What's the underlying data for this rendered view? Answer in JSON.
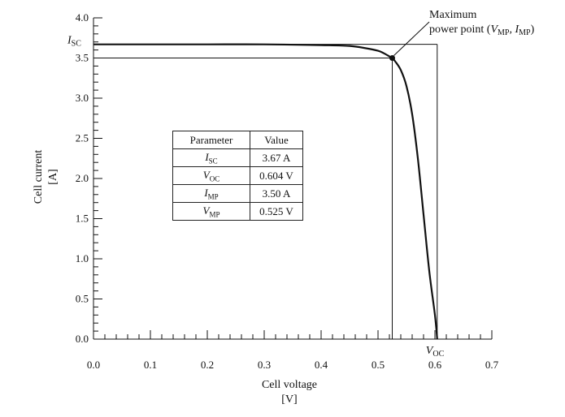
{
  "chart_data": {
    "type": "line",
    "xlabel": "Cell voltage",
    "xlabel_unit": "[V]",
    "ylabel": "Cell current",
    "ylabel_unit": "[A]",
    "xlim": [
      0.0,
      0.7
    ],
    "ylim": [
      0.0,
      4.0
    ],
    "x_ticks": [
      "0.0",
      "0.1",
      "0.2",
      "0.3",
      "0.4",
      "0.5",
      "0.6",
      "0.7"
    ],
    "y_ticks": [
      "0.0",
      "0.5",
      "1.0",
      "1.5",
      "2.0",
      "2.5",
      "3.0",
      "3.5",
      "4.0"
    ],
    "series": [
      {
        "x": [
          0.0,
          0.1,
          0.2,
          0.3,
          0.4,
          0.45,
          0.48,
          0.5,
          0.51,
          0.52,
          0.525,
          0.53,
          0.54,
          0.55,
          0.56,
          0.57,
          0.58,
          0.59,
          0.6,
          0.604
        ],
        "y": [
          3.67,
          3.67,
          3.67,
          3.67,
          3.66,
          3.65,
          3.62,
          3.59,
          3.56,
          3.52,
          3.5,
          3.46,
          3.35,
          3.15,
          2.8,
          2.25,
          1.55,
          0.85,
          0.3,
          0.0
        ]
      }
    ],
    "isc_label": "I",
    "isc_sub": "SC",
    "voc_label": "V",
    "voc_sub": "OC",
    "annotation": {
      "line1": "Maximum",
      "line2_prefix": "power point (",
      "v": "V",
      "v_sub": "MP",
      "sep": ", ",
      "i": "I",
      "i_sub": "MP",
      "suffix": ")"
    },
    "mpp": {
      "x": 0.525,
      "y": 3.5
    },
    "isc": 3.67,
    "voc": 0.604
  },
  "table": {
    "headers": [
      "Parameter",
      "Value"
    ],
    "rows": [
      {
        "sym": "I",
        "sub": "SC",
        "value": "3.67 A"
      },
      {
        "sym": "V",
        "sub": "OC",
        "value": "0.604 V"
      },
      {
        "sym": "I",
        "sub": "MP",
        "value": "3.50 A"
      },
      {
        "sym": "V",
        "sub": "MP",
        "value": "0.525 V"
      }
    ]
  }
}
